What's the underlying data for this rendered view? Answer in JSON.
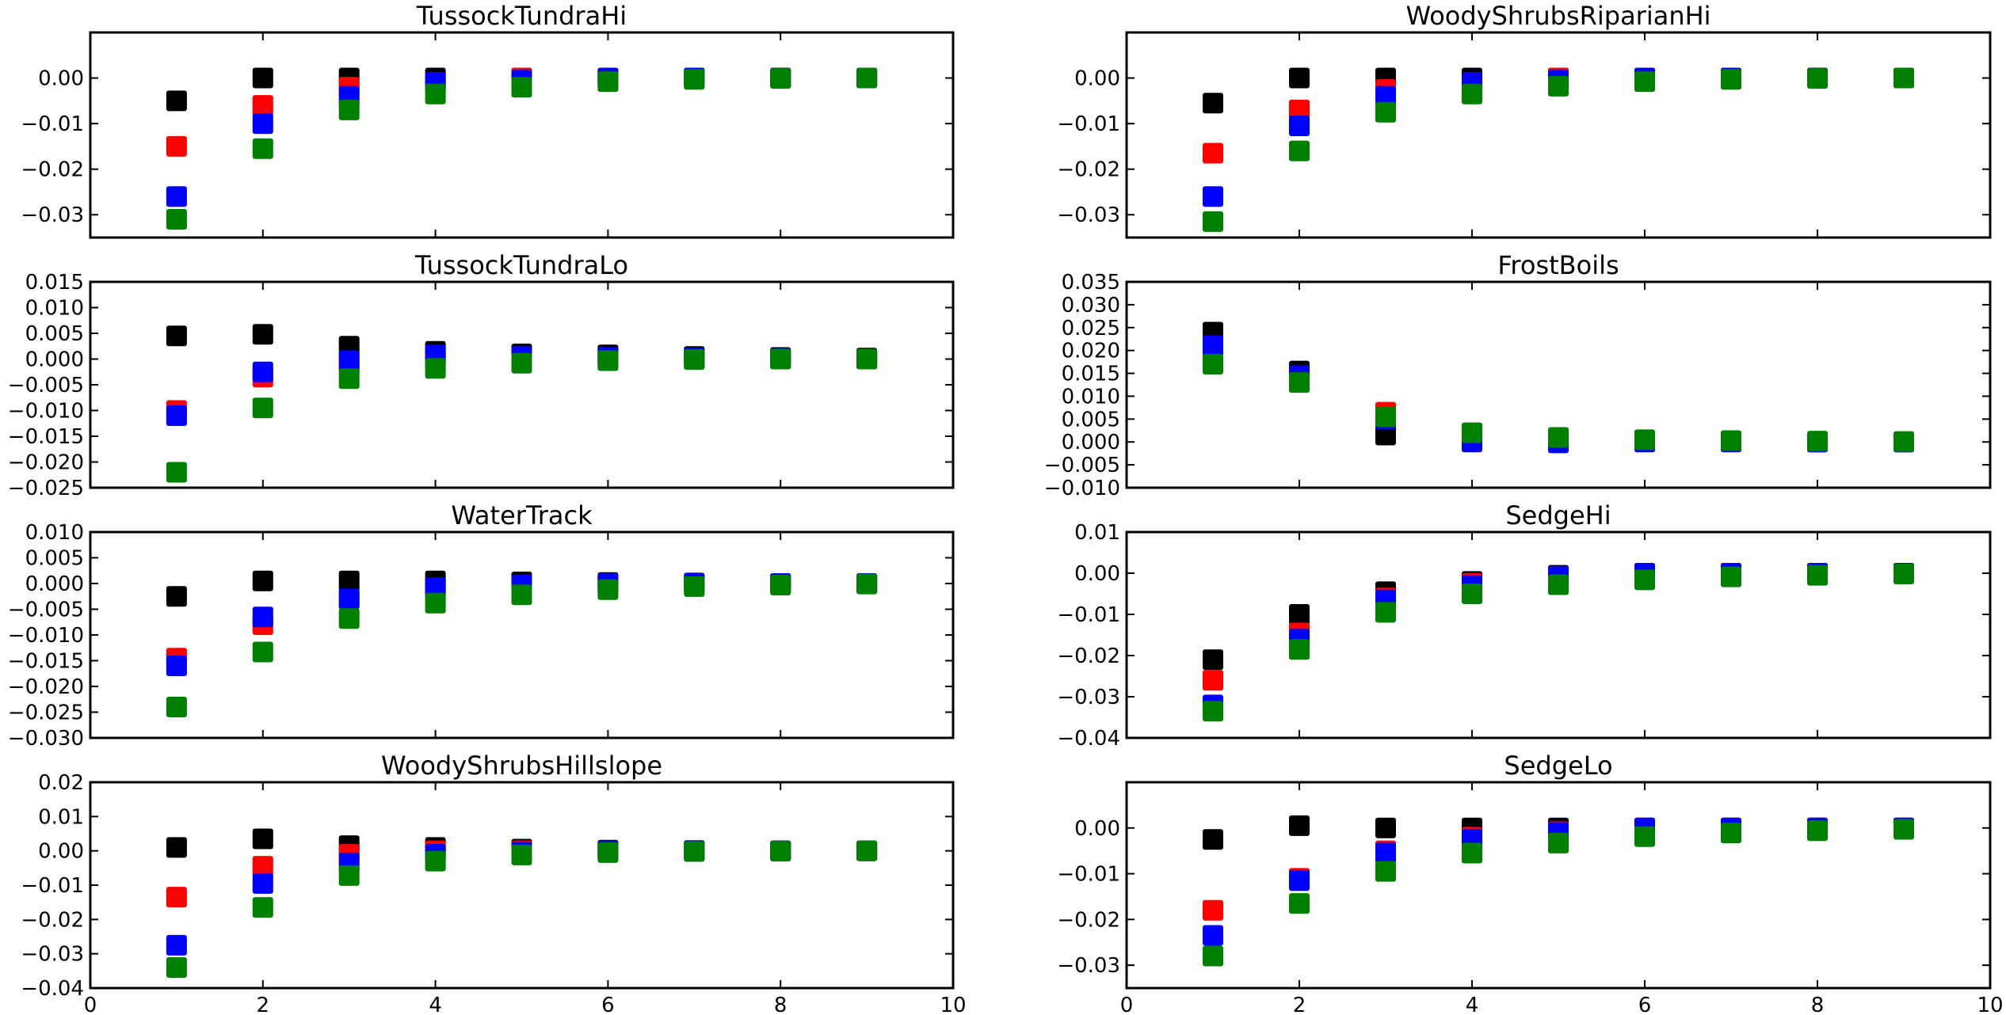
{
  "chart_data": {
    "type": "scatter",
    "marker": "square",
    "colors": [
      "#000000",
      "#ff0000",
      "#0000ff",
      "#008000"
    ],
    "xlim": [
      0,
      10
    ],
    "xticks": [
      0,
      2,
      4,
      6,
      8,
      10
    ],
    "x": [
      1,
      2,
      3,
      4,
      5,
      6,
      7,
      8,
      9
    ],
    "panels": [
      {
        "title": "TussockTundraHi",
        "ylim": [
          -0.035,
          0.01
        ],
        "yticks": [
          -0.03,
          -0.02,
          -0.01,
          0.0
        ],
        "ytick_labels": [
          "−0.03",
          "−0.02",
          "−0.01",
          "0.00"
        ],
        "series": [
          {
            "color": "#000000",
            "values": [
              -0.005,
              0.0,
              0.0,
              0.0,
              0.0,
              0.0,
              0.0,
              0.0,
              0.0
            ]
          },
          {
            "color": "#ff0000",
            "values": [
              -0.015,
              -0.006,
              -0.002,
              -0.001,
              0.0,
              0.0,
              0.0,
              0.0,
              0.0
            ]
          },
          {
            "color": "#0000ff",
            "values": [
              -0.026,
              -0.01,
              -0.004,
              -0.001,
              -0.0005,
              0.0,
              0.0,
              0.0,
              0.0
            ]
          },
          {
            "color": "#008000",
            "values": [
              -0.031,
              -0.0155,
              -0.007,
              -0.0035,
              -0.002,
              -0.0008,
              -0.0003,
              -0.0001,
              0.0
            ]
          }
        ]
      },
      {
        "title": "WoodyShrubsRiparianHi",
        "ylim": [
          -0.035,
          0.01
        ],
        "yticks": [
          -0.03,
          -0.02,
          -0.01,
          0.0
        ],
        "ytick_labels": [
          "−0.03",
          "−0.02",
          "−0.01",
          "0.00"
        ],
        "series": [
          {
            "color": "#000000",
            "values": [
              -0.0055,
              0.0,
              0.0,
              0.0,
              0.0,
              0.0,
              0.0,
              0.0,
              0.0
            ]
          },
          {
            "color": "#ff0000",
            "values": [
              -0.0165,
              -0.007,
              -0.0025,
              -0.001,
              0.0,
              0.0,
              0.0,
              0.0,
              0.0
            ]
          },
          {
            "color": "#0000ff",
            "values": [
              -0.026,
              -0.0105,
              -0.004,
              -0.001,
              -0.0005,
              0.0,
              0.0,
              0.0,
              0.0
            ]
          },
          {
            "color": "#008000",
            "values": [
              -0.0315,
              -0.016,
              -0.0075,
              -0.0035,
              -0.0018,
              -0.0008,
              -0.0003,
              -0.0001,
              0.0
            ]
          }
        ]
      },
      {
        "title": "TussockTundraLo",
        "ylim": [
          -0.025,
          0.015
        ],
        "yticks": [
          -0.025,
          -0.02,
          -0.015,
          -0.01,
          -0.005,
          0.0,
          0.005,
          0.01,
          0.015
        ],
        "ytick_labels": [
          "−0.025",
          "−0.020",
          "−0.015",
          "−0.010",
          "−0.005",
          "0.000",
          "0.005",
          "0.010",
          "0.015"
        ],
        "series": [
          {
            "color": "#000000",
            "values": [
              0.0045,
              0.0048,
              0.0025,
              0.0015,
              0.001,
              0.0008,
              0.0005,
              0.0003,
              0.0002
            ]
          },
          {
            "color": "#ff0000",
            "values": [
              -0.01,
              -0.0035,
              -0.0008,
              0.0,
              0.0,
              0.0,
              0.0,
              0.0,
              0.0
            ]
          },
          {
            "color": "#0000ff",
            "values": [
              -0.011,
              -0.0025,
              -0.0003,
              0.0008,
              0.0005,
              0.0003,
              0.0002,
              0.0001,
              0.0
            ]
          },
          {
            "color": "#008000",
            "values": [
              -0.022,
              -0.0095,
              -0.0038,
              -0.0018,
              -0.0008,
              -0.0003,
              -0.0001,
              0.0,
              0.0
            ]
          }
        ]
      },
      {
        "title": "FrostBoils",
        "ylim": [
          -0.01,
          0.035
        ],
        "yticks": [
          -0.01,
          -0.005,
          0.0,
          0.005,
          0.01,
          0.015,
          0.02,
          0.025,
          0.03,
          0.035
        ],
        "ytick_labels": [
          "−0.010",
          "−0.005",
          "0.000",
          "0.005",
          "0.010",
          "0.015",
          "0.020",
          "0.025",
          "0.030",
          "0.035"
        ],
        "series": [
          {
            "color": "#000000",
            "values": [
              0.024,
              0.0155,
              0.0015,
              0.0015,
              0.0005,
              0.0002,
              0.0001,
              0.0,
              0.0
            ]
          },
          {
            "color": "#ff0000",
            "values": [
              0.021,
              0.0145,
              0.0065,
              0.001,
              0.0005,
              0.0002,
              0.0001,
              0.0,
              0.0
            ]
          },
          {
            "color": "#0000ff",
            "values": [
              0.021,
              0.0145,
              0.005,
              0.0,
              -0.0002,
              0.0,
              0.0,
              0.0,
              0.0
            ]
          },
          {
            "color": "#008000",
            "values": [
              0.017,
              0.013,
              0.0055,
              0.002,
              0.001,
              0.0005,
              0.0003,
              0.0002,
              0.0001
            ]
          }
        ]
      },
      {
        "title": "WaterTrack",
        "ylim": [
          -0.03,
          0.01
        ],
        "yticks": [
          -0.03,
          -0.025,
          -0.02,
          -0.015,
          -0.01,
          -0.005,
          0.0,
          0.005,
          0.01
        ],
        "ytick_labels": [
          "−0.030",
          "−0.025",
          "−0.020",
          "−0.015",
          "−0.010",
          "−0.005",
          "0.000",
          "0.005",
          "0.010"
        ],
        "series": [
          {
            "color": "#000000",
            "values": [
              -0.0025,
              0.0005,
              0.0005,
              0.0005,
              0.0003,
              0.0002,
              0.0001,
              0.0,
              0.0
            ]
          },
          {
            "color": "#ff0000",
            "values": [
              -0.0145,
              -0.008,
              -0.003,
              -0.001,
              -0.0003,
              0.0,
              0.0,
              0.0,
              0.0
            ]
          },
          {
            "color": "#0000ff",
            "values": [
              -0.016,
              -0.0065,
              -0.003,
              -0.0008,
              -0.0003,
              0.0,
              0.0,
              0.0,
              0.0
            ]
          },
          {
            "color": "#008000",
            "values": [
              -0.024,
              -0.0133,
              -0.0068,
              -0.0038,
              -0.0022,
              -0.0012,
              -0.0006,
              -0.0003,
              -0.0001
            ]
          }
        ]
      },
      {
        "title": "SedgeHi",
        "ylim": [
          -0.04,
          0.01
        ],
        "yticks": [
          -0.04,
          -0.03,
          -0.02,
          -0.01,
          0.0,
          0.01
        ],
        "ytick_labels": [
          "−0.04",
          "−0.03",
          "−0.02",
          "−0.01",
          "0.00",
          "0.01"
        ],
        "series": [
          {
            "color": "#000000",
            "values": [
              -0.021,
              -0.01,
              -0.0045,
              -0.002,
              -0.0005,
              0.0,
              0.0,
              0.0,
              0.0
            ]
          },
          {
            "color": "#ff0000",
            "values": [
              -0.026,
              -0.0145,
              -0.006,
              -0.0025,
              -0.0008,
              0.0,
              0.0,
              0.0,
              0.0
            ]
          },
          {
            "color": "#0000ff",
            "values": [
              -0.032,
              -0.016,
              -0.0065,
              -0.003,
              -0.0008,
              0.0,
              0.0,
              0.0,
              0.0
            ]
          },
          {
            "color": "#008000",
            "values": [
              -0.0335,
              -0.0185,
              -0.0095,
              -0.005,
              -0.0028,
              -0.0016,
              -0.0009,
              -0.0005,
              -0.0002
            ]
          }
        ]
      },
      {
        "title": "WoodyShrubsHillslope",
        "ylim": [
          -0.04,
          0.02
        ],
        "yticks": [
          -0.04,
          -0.03,
          -0.02,
          -0.01,
          0.0,
          0.01,
          0.02
        ],
        "ytick_labels": [
          "−0.04",
          "−0.03",
          "−0.02",
          "−0.01",
          "0.00",
          "0.01",
          "0.02"
        ],
        "series": [
          {
            "color": "#000000",
            "values": [
              0.001,
              0.0035,
              0.0015,
              0.001,
              0.0005,
              0.0002,
              0.0001,
              0.0,
              0.0
            ]
          },
          {
            "color": "#ff0000",
            "values": [
              -0.0135,
              -0.0045,
              -0.001,
              0.0,
              0.0,
              0.0,
              0.0,
              0.0,
              0.0
            ]
          },
          {
            "color": "#0000ff",
            "values": [
              -0.0275,
              -0.0095,
              -0.0035,
              -0.001,
              -0.0003,
              0.0,
              0.0,
              0.0,
              0.0
            ]
          },
          {
            "color": "#008000",
            "values": [
              -0.034,
              -0.0165,
              -0.0072,
              -0.003,
              -0.0012,
              -0.0005,
              -0.0002,
              -0.0001,
              0.0
            ]
          }
        ]
      },
      {
        "title": "SedgeLo",
        "ylim": [
          -0.035,
          0.01
        ],
        "yticks": [
          -0.03,
          -0.02,
          -0.01,
          0.0
        ],
        "ytick_labels": [
          "−0.03",
          "−0.02",
          "−0.01",
          "0.00"
        ],
        "series": [
          {
            "color": "#000000",
            "values": [
              -0.0025,
              0.0005,
              0.0,
              0.0,
              0.0,
              0.0,
              0.0,
              0.0,
              0.0
            ]
          },
          {
            "color": "#ff0000",
            "values": [
              -0.018,
              -0.011,
              -0.005,
              -0.002,
              -0.0008,
              0.0,
              0.0,
              0.0,
              0.0
            ]
          },
          {
            "color": "#0000ff",
            "values": [
              -0.0235,
              -0.0115,
              -0.0055,
              -0.0025,
              -0.001,
              0.0,
              0.0,
              0.0,
              0.0
            ]
          },
          {
            "color": "#008000",
            "values": [
              -0.028,
              -0.0165,
              -0.0095,
              -0.0055,
              -0.0033,
              -0.0019,
              -0.0011,
              -0.0006,
              -0.0003
            ]
          }
        ]
      }
    ]
  }
}
